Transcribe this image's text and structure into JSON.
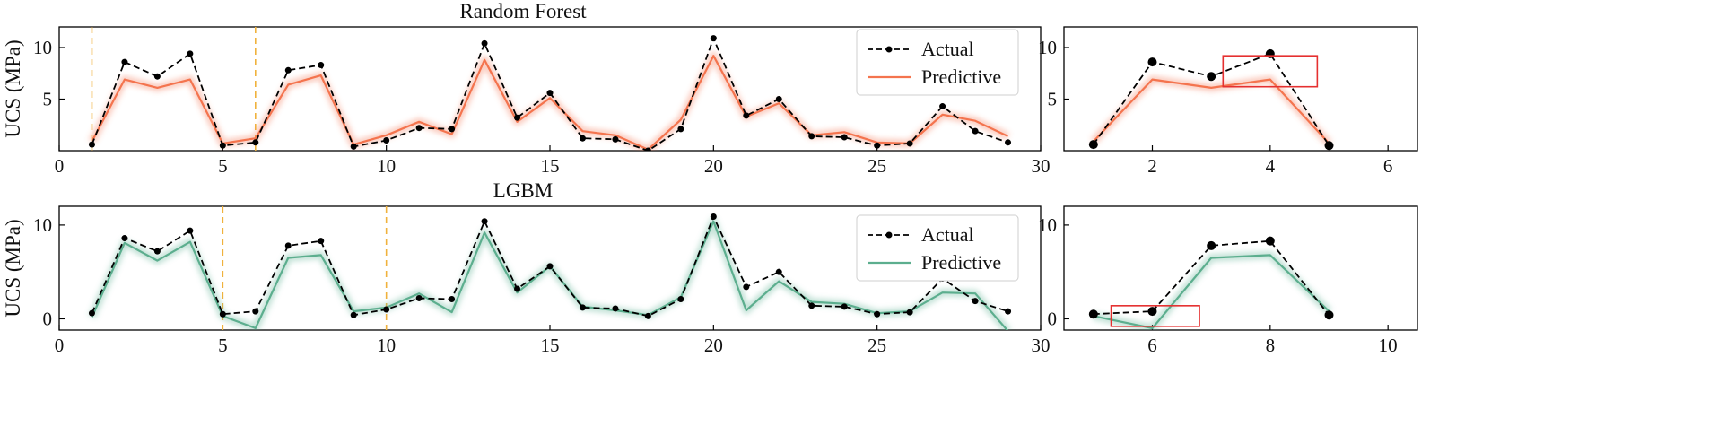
{
  "chart_data": [
    {
      "type": "line",
      "title": "Random Forest",
      "ylabel": "UCS (MPa)",
      "xlim": [
        0,
        30
      ],
      "ylim": [
        0,
        12
      ],
      "xticks": [
        0,
        5,
        10,
        15,
        20,
        25,
        30
      ],
      "yticks": [
        5,
        10
      ],
      "grid": false,
      "legend_position": "top-right",
      "markers": [
        1,
        6
      ],
      "series": [
        {
          "name": "Actual",
          "style": "dashed-dot",
          "color": "#000000",
          "x": [
            1,
            2,
            3,
            4,
            5,
            6,
            7,
            8,
            9,
            10,
            11,
            12,
            13,
            14,
            15,
            16,
            17,
            18,
            19,
            20,
            21,
            22,
            23,
            24,
            25,
            26,
            27,
            28,
            29
          ],
          "y": [
            0.6,
            8.6,
            7.2,
            9.4,
            0.5,
            0.8,
            7.8,
            8.3,
            0.4,
            1.0,
            2.2,
            2.1,
            10.4,
            3.2,
            5.6,
            1.2,
            1.1,
            0.0,
            2.1,
            10.9,
            3.4,
            5.0,
            1.4,
            1.3,
            0.5,
            0.7,
            4.3,
            1.9,
            0.8
          ]
        },
        {
          "name": "Predictive",
          "style": "solid",
          "color": "#f4744e",
          "x": [
            1,
            2,
            3,
            4,
            5,
            6,
            7,
            8,
            9,
            10,
            11,
            12,
            13,
            14,
            15,
            16,
            17,
            18,
            19,
            20,
            21,
            22,
            23,
            24,
            25,
            26,
            27,
            28,
            29
          ],
          "y": [
            0.9,
            6.9,
            6.1,
            6.9,
            0.7,
            1.2,
            6.4,
            7.3,
            0.6,
            1.5,
            2.8,
            1.6,
            8.8,
            2.8,
            5.1,
            1.9,
            1.5,
            0.1,
            3.0,
            9.2,
            3.3,
            4.6,
            1.5,
            1.8,
            0.8,
            0.7,
            3.5,
            2.9,
            1.4
          ]
        }
      ]
    },
    {
      "type": "line",
      "title": "",
      "xlim": [
        0.5,
        6.5
      ],
      "ylim": [
        0,
        12
      ],
      "xticks": [
        2,
        4,
        6
      ],
      "yticks": [
        5,
        10
      ],
      "grid": false,
      "highlight_box": {
        "x": [
          3.2,
          4.8
        ],
        "y": [
          6.2,
          9.2
        ]
      },
      "series": [
        {
          "name": "Actual",
          "style": "dashed-dot",
          "color": "#000000",
          "x": [
            1,
            2,
            3,
            4,
            5
          ],
          "y": [
            0.6,
            8.6,
            7.2,
            9.4,
            0.5
          ]
        },
        {
          "name": "Predictive",
          "style": "solid",
          "color": "#f4744e",
          "x": [
            1,
            2,
            3,
            4,
            5
          ],
          "y": [
            0.9,
            6.9,
            6.1,
            6.9,
            0.7
          ]
        }
      ]
    },
    {
      "type": "line",
      "title": "LGBM",
      "ylabel": "UCS (MPa)",
      "xlim": [
        0,
        30
      ],
      "ylim": [
        -1.2,
        12
      ],
      "xticks": [
        0,
        5,
        10,
        15,
        20,
        25,
        30
      ],
      "yticks": [
        0,
        10
      ],
      "grid": false,
      "legend_position": "top-right",
      "markers": [
        5,
        10
      ],
      "series": [
        {
          "name": "Actual",
          "style": "dashed-dot",
          "color": "#000000",
          "x": [
            1,
            2,
            3,
            4,
            5,
            6,
            7,
            8,
            9,
            10,
            11,
            12,
            13,
            14,
            15,
            16,
            17,
            18,
            19,
            20,
            21,
            22,
            23,
            24,
            25,
            26,
            27,
            28,
            29
          ],
          "y": [
            0.6,
            8.6,
            7.2,
            9.4,
            0.5,
            0.8,
            7.8,
            8.3,
            0.4,
            1.0,
            2.2,
            2.1,
            10.4,
            3.2,
            5.6,
            1.2,
            1.1,
            0.3,
            2.1,
            10.9,
            3.4,
            5.0,
            1.4,
            1.3,
            0.5,
            0.7,
            4.3,
            1.9,
            0.8
          ]
        },
        {
          "name": "Predictive",
          "style": "solid",
          "color": "#5cae8e",
          "x": [
            1,
            2,
            3,
            4,
            5,
            6,
            7,
            8,
            9,
            10,
            11,
            12,
            13,
            14,
            15,
            16,
            17,
            18,
            19,
            20,
            21,
            22,
            23,
            24,
            25,
            26,
            27,
            28,
            29
          ],
          "y": [
            0.2,
            8.1,
            6.2,
            8.2,
            0.3,
            -1.0,
            6.5,
            6.8,
            0.8,
            1.2,
            2.7,
            0.7,
            9.2,
            2.8,
            5.6,
            1.3,
            0.9,
            0.4,
            2.3,
            10.4,
            0.9,
            4.0,
            1.8,
            1.6,
            0.6,
            0.8,
            2.8,
            2.7,
            -1.3
          ]
        }
      ]
    },
    {
      "type": "line",
      "title": "",
      "xlim": [
        4.5,
        10.5
      ],
      "ylim": [
        -1.2,
        12
      ],
      "xticks": [
        6,
        8,
        10
      ],
      "yticks": [
        0,
        10
      ],
      "grid": false,
      "highlight_box": {
        "x": [
          5.3,
          6.8
        ],
        "y": [
          -0.8,
          1.4
        ]
      },
      "series": [
        {
          "name": "Actual",
          "style": "dashed-dot",
          "color": "#000000",
          "x": [
            5,
            6,
            7,
            8,
            9
          ],
          "y": [
            0.5,
            0.8,
            7.8,
            8.3,
            0.4
          ]
        },
        {
          "name": "Predictive",
          "style": "solid",
          "color": "#5cae8e",
          "x": [
            5,
            6,
            7,
            8,
            9
          ],
          "y": [
            0.3,
            -1.0,
            6.5,
            6.8,
            0.8
          ]
        }
      ]
    }
  ]
}
